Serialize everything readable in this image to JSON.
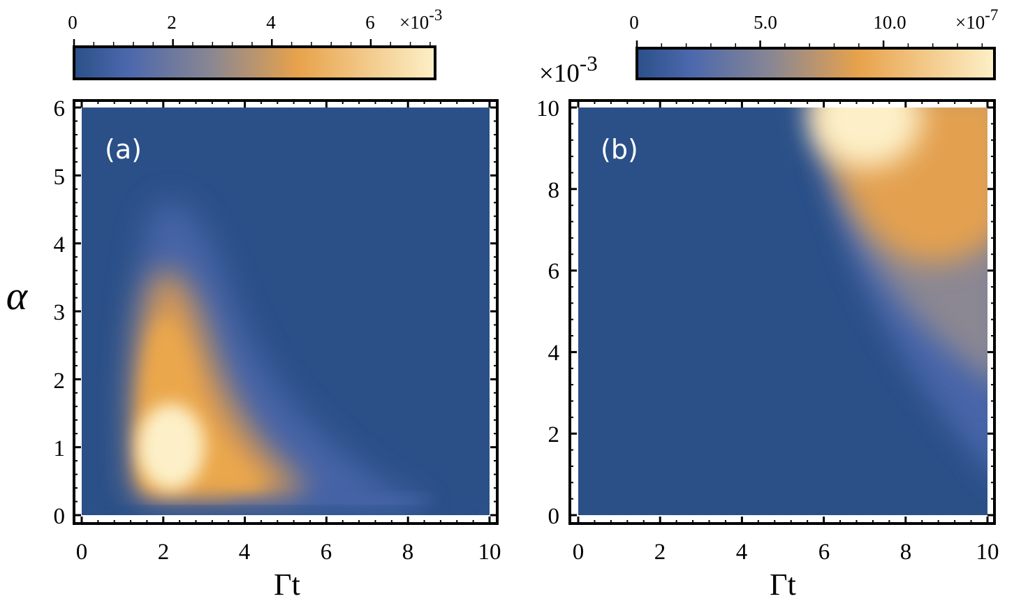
{
  "chart_data": [
    {
      "type": "heatmap",
      "panel_label": "(a)",
      "xlabel": "Γt",
      "ylabel": "α",
      "xlim": [
        0,
        10
      ],
      "ylim": [
        0,
        6
      ],
      "xticks": [
        "0",
        "2",
        "4",
        "6",
        "8",
        "10"
      ],
      "yticks": [
        "0",
        "1",
        "2",
        "3",
        "4",
        "5",
        "6"
      ],
      "colorbar": {
        "min": 0,
        "max": 0.0073,
        "ticks": [
          "0",
          "2",
          "4",
          "6"
        ],
        "multiplier_label": "×10",
        "multiplier_exponent": "-3"
      },
      "colormap": [
        "#2b5088",
        "#4b68ad",
        "#8a8792",
        "#e8a24b",
        "#fdf0c8"
      ],
      "peak": {
        "x": 2.2,
        "y": 1.0,
        "value": 0.0073
      },
      "features": "bright lobe near Γt≈2.2, α≈1; decays to zero by Γt≈8 and α≈5"
    },
    {
      "type": "heatmap",
      "panel_label": "(b)",
      "xlabel": "Γt",
      "ylabel": "",
      "xlim": [
        0,
        10
      ],
      "ylim": [
        0,
        10
      ],
      "y_multiplier_label": "×10",
      "y_multiplier_exponent": "-3",
      "xticks": [
        "0",
        "2",
        "4",
        "6",
        "8",
        "10"
      ],
      "yticks": [
        "0",
        "2",
        "4",
        "6",
        "8",
        "10"
      ],
      "colorbar": {
        "min": 0,
        "max": 1.45e-06,
        "ticks": [
          "0",
          "5.0",
          "10.0"
        ],
        "multiplier_label": "×10",
        "multiplier_exponent": "-7"
      },
      "colormap": [
        "#2b5088",
        "#4b68ad",
        "#8a8792",
        "#e8a24b",
        "#fdf0c8"
      ],
      "peak": {
        "x": 7.1,
        "y": 10.0,
        "value": 1.45e-06
      },
      "features": "signal appears only for Γt > ~5.8 and grows with α (in units of 1e-3); brightest near Γt≈7, α≈10e-3"
    }
  ]
}
